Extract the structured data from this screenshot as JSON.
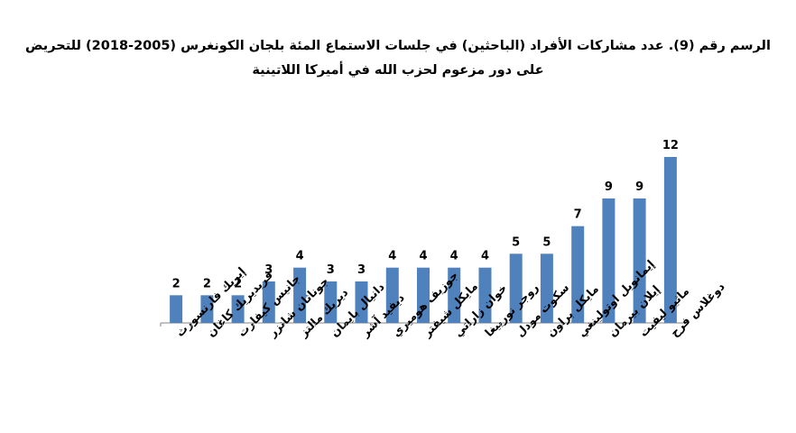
{
  "chart_data": {
    "type": "bar",
    "title_lines": [
      "الرسم رقم (9). عدد مشاركات الأفراد (الباحثين) في جلسات الاستماع المئة بلجان الكونغرس (2005-2018) للتحريض",
      "على دور مزعوم لحزب الله في أميركا اللاتينية"
    ],
    "categories": [
      "إيريك فارنسورث",
      "فريديريك كاغان",
      "جانيس كيفارت",
      "جوناثان شانزر",
      "ديريك مالتز",
      "دانيال بايمان",
      "ديفيد آشر",
      "جوزيف هوميري",
      "مايكل شيفتر",
      "خوان زاراتي",
      "روجر نورييغا",
      "سكوت مودل",
      "مايكل براون",
      "إيمانويل اوتولينغي",
      "إيلان بيرمان",
      "ماثيو ليفيت",
      "دوغلاس فرح"
    ],
    "values": [
      2,
      2,
      2,
      3,
      4,
      3,
      3,
      4,
      4,
      4,
      4,
      5,
      5,
      7,
      9,
      9,
      12
    ],
    "ylim": [
      0,
      12
    ],
    "grid": false,
    "legend": "none",
    "bar_color": "#4f81bd"
  }
}
